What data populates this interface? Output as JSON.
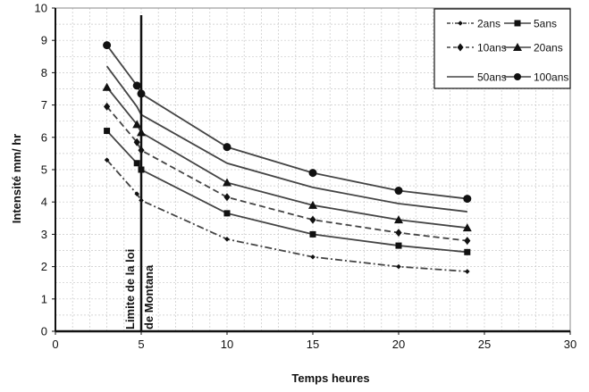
{
  "chart_data": {
    "type": "line",
    "title": "",
    "xlabel": "Temps heures",
    "ylabel": "Intensité mm/ hr",
    "xlim": [
      0,
      30
    ],
    "ylim": [
      0,
      10
    ],
    "xticks": [
      0,
      5,
      10,
      15,
      20,
      25,
      30
    ],
    "yticks": [
      0,
      1,
      2,
      3,
      4,
      5,
      6,
      7,
      8,
      9,
      10
    ],
    "grid": true,
    "legend_position": "top-right",
    "x": [
      3,
      4.75,
      5,
      10,
      15,
      20,
      24
    ],
    "series": [
      {
        "name": "2ans",
        "values": [
          5.3,
          4.25,
          4.05,
          2.85,
          2.3,
          2.0,
          1.85
        ],
        "style": "dash-dot",
        "marker": "small-dot"
      },
      {
        "name": "5ans",
        "values": [
          6.2,
          5.2,
          5.0,
          3.65,
          3.0,
          2.65,
          2.45
        ],
        "style": "solid",
        "marker": "square"
      },
      {
        "name": "10ans",
        "values": [
          6.95,
          5.85,
          5.6,
          4.15,
          3.45,
          3.05,
          2.8
        ],
        "style": "dashed",
        "marker": "diamond"
      },
      {
        "name": "20ans",
        "values": [
          7.55,
          6.4,
          6.15,
          4.6,
          3.9,
          3.45,
          3.2
        ],
        "style": "solid",
        "marker": "triangle"
      },
      {
        "name": "50ans",
        "values": [
          8.2,
          6.95,
          6.7,
          5.2,
          4.45,
          3.95,
          3.7
        ],
        "style": "solid",
        "marker": "none"
      },
      {
        "name": "100ans",
        "values": [
          8.85,
          7.6,
          7.35,
          5.7,
          4.9,
          4.35,
          4.1
        ],
        "style": "solid",
        "marker": "circle"
      }
    ],
    "vline": {
      "x": 5,
      "label_line1": "Limite de la loi",
      "label_line2": "de Montana"
    }
  }
}
